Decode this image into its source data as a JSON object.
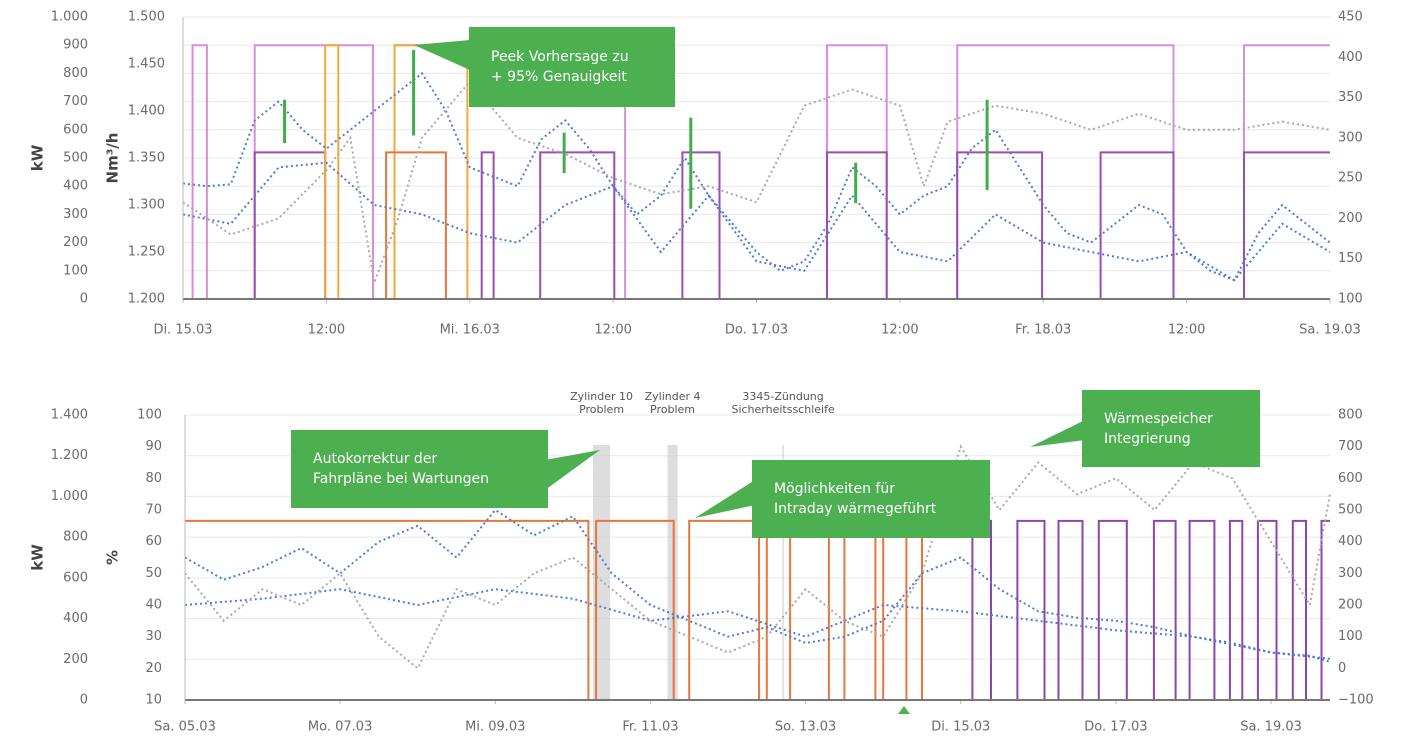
{
  "chart_data": [
    {
      "type": "line",
      "ylabel": "kW",
      "y3label": "Nm³/h",
      "xlim": [
        0,
        96
      ],
      "xticks": [
        {
          "value": 0,
          "label": "Di. 15.03"
        },
        {
          "value": 12,
          "label": "12:00"
        },
        {
          "value": 24,
          "label": "Mi. 16.03"
        },
        {
          "value": 36,
          "label": "12:00"
        },
        {
          "value": 48,
          "label": "Do. 17.03"
        },
        {
          "value": 60,
          "label": "12:00"
        },
        {
          "value": 72,
          "label": "Fr. 18.03"
        },
        {
          "value": 84,
          "label": "12:00"
        },
        {
          "value": 96,
          "label": "Sa. 19.03"
        }
      ],
      "ylim": [
        0,
        1000
      ],
      "yticks": [
        0,
        100,
        200,
        300,
        400,
        500,
        600,
        700,
        800,
        900,
        {
          "value": 1000,
          "label": "1.000"
        }
      ],
      "y3lim": [
        1200,
        1500
      ],
      "y3ticks": [
        {
          "value": 1200,
          "label": "1.200"
        },
        {
          "value": 1250,
          "label": "1.250"
        },
        {
          "value": 1300,
          "label": "1.300"
        },
        {
          "value": 1350,
          "label": "1.350"
        },
        {
          "value": 1400,
          "label": "1.400"
        },
        {
          "value": 1450,
          "label": "1.450"
        },
        {
          "value": 1500,
          "label": "1.500"
        }
      ],
      "y2lim": [
        100,
        450
      ],
      "y2ticks": [
        100,
        150,
        200,
        250,
        300,
        350,
        400,
        450
      ],
      "grid": true,
      "series": [
        {
          "color": "#d68fdb",
          "style": "solid",
          "axis": "y",
          "x": [
            0,
            0.8,
            0.8,
            2,
            2,
            6,
            6,
            15.9,
            15.9,
            17.7,
            17.7,
            37,
            37,
            53.9,
            53.9,
            58.9,
            58.9,
            64.8,
            64.8,
            82.9,
            82.9,
            88.8,
            88.8,
            96
          ],
          "values": [
            0,
            0,
            900,
            900,
            0,
            0,
            900,
            900,
            0,
            0,
            900,
            900,
            0,
            0,
            900,
            900,
            0,
            0,
            900,
            900,
            0,
            0,
            900,
            900
          ]
        },
        {
          "color": "#9b4db0",
          "style": "solid",
          "axis": "y",
          "x": [
            0,
            6,
            6,
            11.9,
            11.9,
            25,
            25,
            26,
            26,
            29.9,
            29.9,
            36.1,
            36.1,
            41.8,
            41.8,
            44.9,
            44.9,
            53.9,
            53.9,
            58.9,
            58.9,
            64.8,
            64.8,
            71.9,
            71.9,
            76.8,
            76.8,
            82.9,
            82.9,
            88.8,
            88.8,
            96
          ],
          "values": [
            0,
            0,
            520,
            520,
            0,
            0,
            520,
            520,
            0,
            0,
            520,
            520,
            0,
            0,
            520,
            520,
            0,
            0,
            520,
            520,
            0,
            0,
            520,
            520,
            0,
            0,
            520,
            520,
            0,
            0,
            520,
            520
          ]
        },
        {
          "color": "#f2a83a",
          "style": "solid",
          "axis": "y",
          "x": [
            11.9,
            11.9,
            13,
            13,
            17.7,
            17.7,
            23.8,
            23.8
          ],
          "values": [
            0,
            900,
            900,
            0,
            0,
            900,
            900,
            0
          ]
        },
        {
          "color": "#e8763a",
          "style": "solid",
          "axis": "y",
          "x": [
            17,
            17,
            22,
            22
          ],
          "values": [
            0,
            520,
            520,
            0
          ]
        },
        {
          "color": "#4a7fd0",
          "style": "dotted",
          "axis": "y3",
          "x": [
            0,
            2,
            4,
            6,
            8,
            10,
            12,
            14,
            16,
            18,
            20,
            22,
            24,
            26,
            28,
            30,
            32,
            34,
            36,
            38,
            40,
            42,
            44,
            46,
            48,
            50,
            52,
            54,
            56,
            58,
            60,
            62,
            64,
            66,
            68,
            70,
            72,
            74,
            76,
            78,
            80,
            82,
            84,
            86,
            88,
            90,
            92,
            94,
            96
          ],
          "values": [
            1323,
            1320,
            1322,
            1390,
            1410,
            1380,
            1360,
            1380,
            1400,
            1420,
            1440,
            1400,
            1340,
            1330,
            1320,
            1370,
            1390,
            1360,
            1320,
            1290,
            1310,
            1350,
            1310,
            1280,
            1250,
            1230,
            1240,
            1280,
            1340,
            1320,
            1290,
            1310,
            1320,
            1360,
            1380,
            1340,
            1300,
            1270,
            1260,
            1280,
            1300,
            1290,
            1250,
            1230,
            1220,
            1270,
            1300,
            1280,
            1260
          ]
        },
        {
          "color": "#4a7fd0",
          "style": "dotted",
          "axis": "y3",
          "x": [
            0,
            4,
            8,
            12,
            16,
            20,
            24,
            28,
            32,
            36,
            40,
            44,
            48,
            52,
            56,
            60,
            64,
            68,
            72,
            76,
            80,
            84,
            88,
            92,
            96
          ],
          "values": [
            1290,
            1280,
            1340,
            1345,
            1300,
            1290,
            1270,
            1260,
            1300,
            1320,
            1250,
            1310,
            1240,
            1230,
            1310,
            1250,
            1240,
            1290,
            1260,
            1250,
            1240,
            1250,
            1220,
            1280,
            1250
          ]
        },
        {
          "color": "#a9a9a9",
          "style": "dotted",
          "axis": "y2",
          "x": [
            0,
            4,
            8,
            12,
            14,
            16,
            18,
            20,
            24,
            28,
            32,
            36,
            40,
            44,
            48,
            52,
            56,
            60,
            62,
            64,
            68,
            72,
            76,
            80,
            84,
            88,
            92,
            96
          ],
          "values": [
            220,
            180,
            200,
            260,
            300,
            120,
            200,
            300,
            370,
            300,
            280,
            250,
            230,
            240,
            220,
            340,
            360,
            340,
            240,
            320,
            340,
            330,
            310,
            330,
            310,
            310,
            320,
            310
          ]
        }
      ],
      "ranges": {
        "color": "#3fae49",
        "axis": "y3",
        "x": [
          8.5,
          19.3,
          31.9,
          42.5,
          56.3,
          67.3
        ],
        "low": [
          1366,
          1374,
          1334,
          1296,
          1302,
          1316
        ],
        "high": [
          1412,
          1465,
          1377,
          1393,
          1345,
          1412
        ]
      },
      "annotations": [
        "Peek Vorhersage zu\n+ 95% Genauigkeit"
      ]
    },
    {
      "type": "line",
      "ylabel": "kW",
      "y3label": "%",
      "xlim": [
        0,
        14.76
      ],
      "xticks": [
        {
          "value": 0,
          "label": "Sa. 05.03"
        },
        {
          "value": 2,
          "label": "Mo. 07.03"
        },
        {
          "value": 4,
          "label": "Mi. 09.03"
        },
        {
          "value": 6,
          "label": "Fr. 11.03"
        },
        {
          "value": 8,
          "label": "So. 13.03"
        },
        {
          "value": 10,
          "label": "Di. 15.03"
        },
        {
          "value": 12,
          "label": "Do. 17.03"
        },
        {
          "value": 14,
          "label": "Sa. 19.03"
        }
      ],
      "ylim": [
        0,
        1400
      ],
      "yticks": [
        0,
        200,
        400,
        600,
        800,
        {
          "value": 1000,
          "label": "1.000"
        },
        {
          "value": 1200,
          "label": "1.200"
        },
        {
          "value": 1400,
          "label": "1.400"
        }
      ],
      "y3lim": [
        10,
        100
      ],
      "y3ticks": [
        10,
        20,
        30,
        40,
        50,
        60,
        70,
        80,
        90,
        100
      ],
      "y2lim": [
        -100,
        800
      ],
      "y2ticks": [
        {
          "value": -100,
          "label": "−100"
        },
        0,
        100,
        200,
        300,
        400,
        500,
        600,
        700,
        800
      ],
      "grid": true,
      "events": [
        {
          "label": "Zylinder 10\nProblem",
          "x": [
            5.26,
            5.48
          ]
        },
        {
          "label": "Zylinder 4\nProblem",
          "x": [
            6.22,
            6.35
          ]
        },
        {
          "label": "3345-Zündung\nSicherheitsschleife",
          "x": [
            7.7,
            7.72
          ]
        }
      ],
      "series": [
        {
          "color": "#e8763a",
          "style": "solid",
          "axis": "y",
          "x": [
            0,
            5.2,
            5.2,
            5.3,
            5.3,
            6.3,
            6.3,
            6.5,
            6.5,
            7.4,
            7.4,
            7.5,
            7.5,
            7.8,
            7.8,
            8.3,
            8.3,
            8.5,
            8.5,
            8.9,
            8.9,
            9.0,
            9.0,
            9.3,
            9.3,
            9.5,
            9.5
          ],
          "values": [
            880,
            880,
            0,
            0,
            880,
            880,
            0,
            0,
            880,
            880,
            0,
            0,
            880,
            880,
            0,
            0,
            880,
            880,
            0,
            0,
            880,
            880,
            0,
            0,
            880,
            880,
            0
          ]
        },
        {
          "color": "#8e44ad",
          "style": "solid",
          "axis": "y",
          "x": [
            9.7,
            10.15,
            10.15,
            10.39,
            10.39,
            10.73,
            10.73,
            11.08,
            11.08,
            11.26,
            11.26,
            11.57,
            11.57,
            11.78,
            11.78,
            12.14,
            12.14,
            12.49,
            12.49,
            12.77,
            12.77,
            12.95,
            12.95,
            13.27,
            13.27,
            13.47,
            13.47,
            13.63,
            13.63,
            13.83,
            13.83,
            14.07,
            14.07,
            14.28,
            14.28,
            14.45,
            14.45,
            14.65,
            14.65,
            14.76
          ],
          "values": [
            0,
            0,
            880,
            880,
            0,
            0,
            880,
            880,
            0,
            0,
            880,
            880,
            0,
            0,
            880,
            880,
            0,
            0,
            880,
            880,
            0,
            0,
            880,
            880,
            0,
            0,
            880,
            880,
            0,
            0,
            880,
            880,
            0,
            0,
            880,
            880,
            0,
            0,
            880,
            880
          ]
        },
        {
          "color": "#4a7fd0",
          "style": "dotted",
          "axis": "y3",
          "x": [
            0,
            0.5,
            1,
            1.5,
            2,
            2.5,
            3,
            3.5,
            4,
            4.5,
            5,
            5.5,
            6,
            6.5,
            7,
            7.5,
            8,
            8.5,
            9,
            9.5,
            10,
            10.5,
            11,
            11.5,
            12,
            12.5,
            13,
            13.5,
            14,
            14.5,
            14.76
          ],
          "values": [
            55,
            48,
            52,
            58,
            50,
            60,
            65,
            55,
            70,
            62,
            68,
            50,
            40,
            35,
            30,
            33,
            28,
            30,
            35,
            50,
            55,
            45,
            38,
            36,
            35,
            33,
            30,
            28,
            25,
            24,
            22
          ]
        },
        {
          "color": "#4a7fd0",
          "style": "dotted",
          "axis": "y3",
          "x": [
            0,
            1,
            2,
            3,
            4,
            5,
            6,
            7,
            8,
            9,
            10,
            11,
            12,
            13,
            14,
            14.76
          ],
          "values": [
            40,
            42,
            45,
            40,
            45,
            42,
            35,
            38,
            30,
            40,
            38,
            35,
            32,
            30,
            25,
            23
          ]
        },
        {
          "color": "#a9a9a9",
          "style": "dotted",
          "axis": "y2",
          "x": [
            0,
            0.5,
            1,
            1.5,
            2,
            2.5,
            3,
            3.5,
            4,
            4.5,
            5,
            5.5,
            6,
            6.5,
            7,
            7.5,
            8,
            8.5,
            9,
            9.5,
            10,
            10.5,
            11,
            11.5,
            12,
            12.5,
            13,
            13.5,
            14,
            14.5,
            14.76
          ],
          "values": [
            300,
            150,
            250,
            200,
            300,
            100,
            0,
            250,
            200,
            300,
            350,
            250,
            150,
            100,
            50,
            100,
            250,
            150,
            100,
            300,
            700,
            500,
            650,
            550,
            600,
            500,
            650,
            600,
            400,
            200,
            550
          ]
        }
      ],
      "annotations": [
        "Autokorrektur der\nFahrpläne bei Wartungen",
        "Möglichkeiten für\nIntraday wärmegeführt",
        "Wärmespeicher\nIntegrierung"
      ]
    }
  ]
}
